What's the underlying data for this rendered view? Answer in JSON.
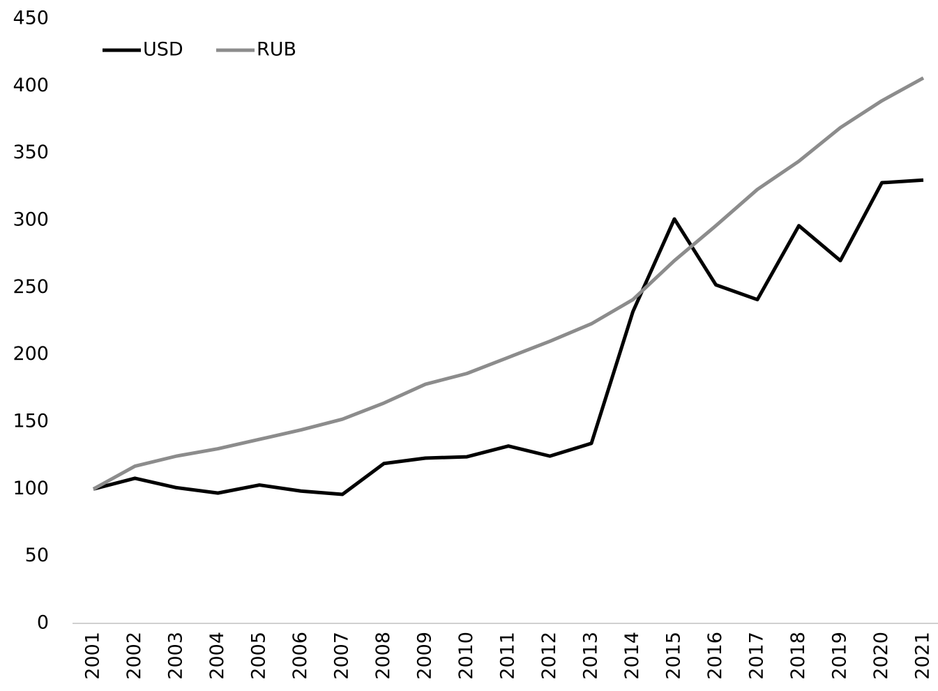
{
  "chart_data": {
    "type": "line",
    "categories": [
      "2001",
      "2002",
      "2003",
      "2004",
      "2005",
      "2006",
      "2007",
      "2008",
      "2009",
      "2010",
      "2011",
      "2012",
      "2013",
      "2014",
      "2015",
      "2016",
      "2017",
      "2018",
      "2019",
      "2020",
      "2021"
    ],
    "series": [
      {
        "name": "USD",
        "color": "#000000",
        "values": [
          100,
          108,
          101,
          97,
          103,
          98.5,
          96,
          119,
          123,
          124,
          132,
          124.5,
          134,
          232,
          301,
          252,
          241,
          296,
          270,
          328,
          330
        ]
      },
      {
        "name": "RUB",
        "color": "#8c8c8c",
        "values": [
          100,
          117,
          124.5,
          130,
          137,
          144,
          152,
          164,
          178,
          186,
          198,
          210,
          223,
          241,
          270,
          296,
          323,
          344,
          369,
          389,
          406
        ]
      }
    ],
    "ylim": [
      0,
      450
    ],
    "yticks": [
      0,
      50,
      100,
      150,
      200,
      250,
      300,
      350,
      400,
      450
    ],
    "grid": false,
    "legend": "top-left"
  }
}
